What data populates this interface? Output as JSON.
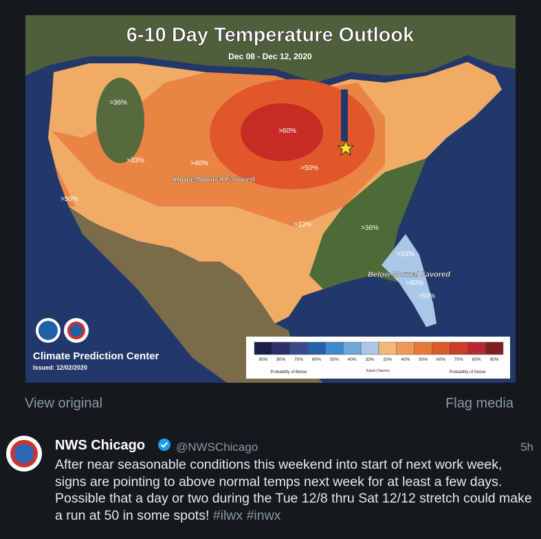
{
  "map": {
    "title": "6-10 Day Temperature Outlook",
    "dates": "Dec 08 - Dec 12, 2020",
    "labels": [
      ">36%",
      ">33%",
      ">40%",
      ">60%",
      ">50%",
      ">50%",
      ">33%",
      ">36%",
      ">33%",
      ">40%",
      ">50%"
    ],
    "above_label": "Above-Normal Favored",
    "below_label": "Below-Normal Favored",
    "agency": "Climate Prediction Center",
    "issued": "Issued: 12/02/2020",
    "legend": {
      "values": [
        "90%",
        "80%",
        "70%",
        "60%",
        "50%",
        "40%",
        "33%",
        "33%",
        "40%",
        "50%",
        "60%",
        "70%",
        "80%",
        "90%"
      ],
      "colors": [
        "#1b1f4a",
        "#2b2f6a",
        "#3a4a8a",
        "#2560a8",
        "#3d8ad0",
        "#6fa8dc",
        "#a9c8e8",
        "#f2b878",
        "#ee9a55",
        "#e77a3a",
        "#df5a2a",
        "#cf3a2a",
        "#b42a2e",
        "#7e1f22"
      ],
      "below": "Probability of Below",
      "equal": "Equal Chances",
      "above": "Probability of Above"
    }
  },
  "links": {
    "view_original": "View original",
    "flag_media": "Flag media"
  },
  "tweet": {
    "name": "NWS Chicago",
    "handle": "@NWSChicago",
    "time": "5h",
    "text": "After near seasonable conditions this weekend into start of next work week, signs are pointing to above normal temps next week for at least a few days. Possible that a day or two during the Tue 12/8 thru Sat 12/12 stretch could make a run at 50 in some spots!",
    "hashtags": [
      "#ilwx",
      "#inwx"
    ]
  }
}
